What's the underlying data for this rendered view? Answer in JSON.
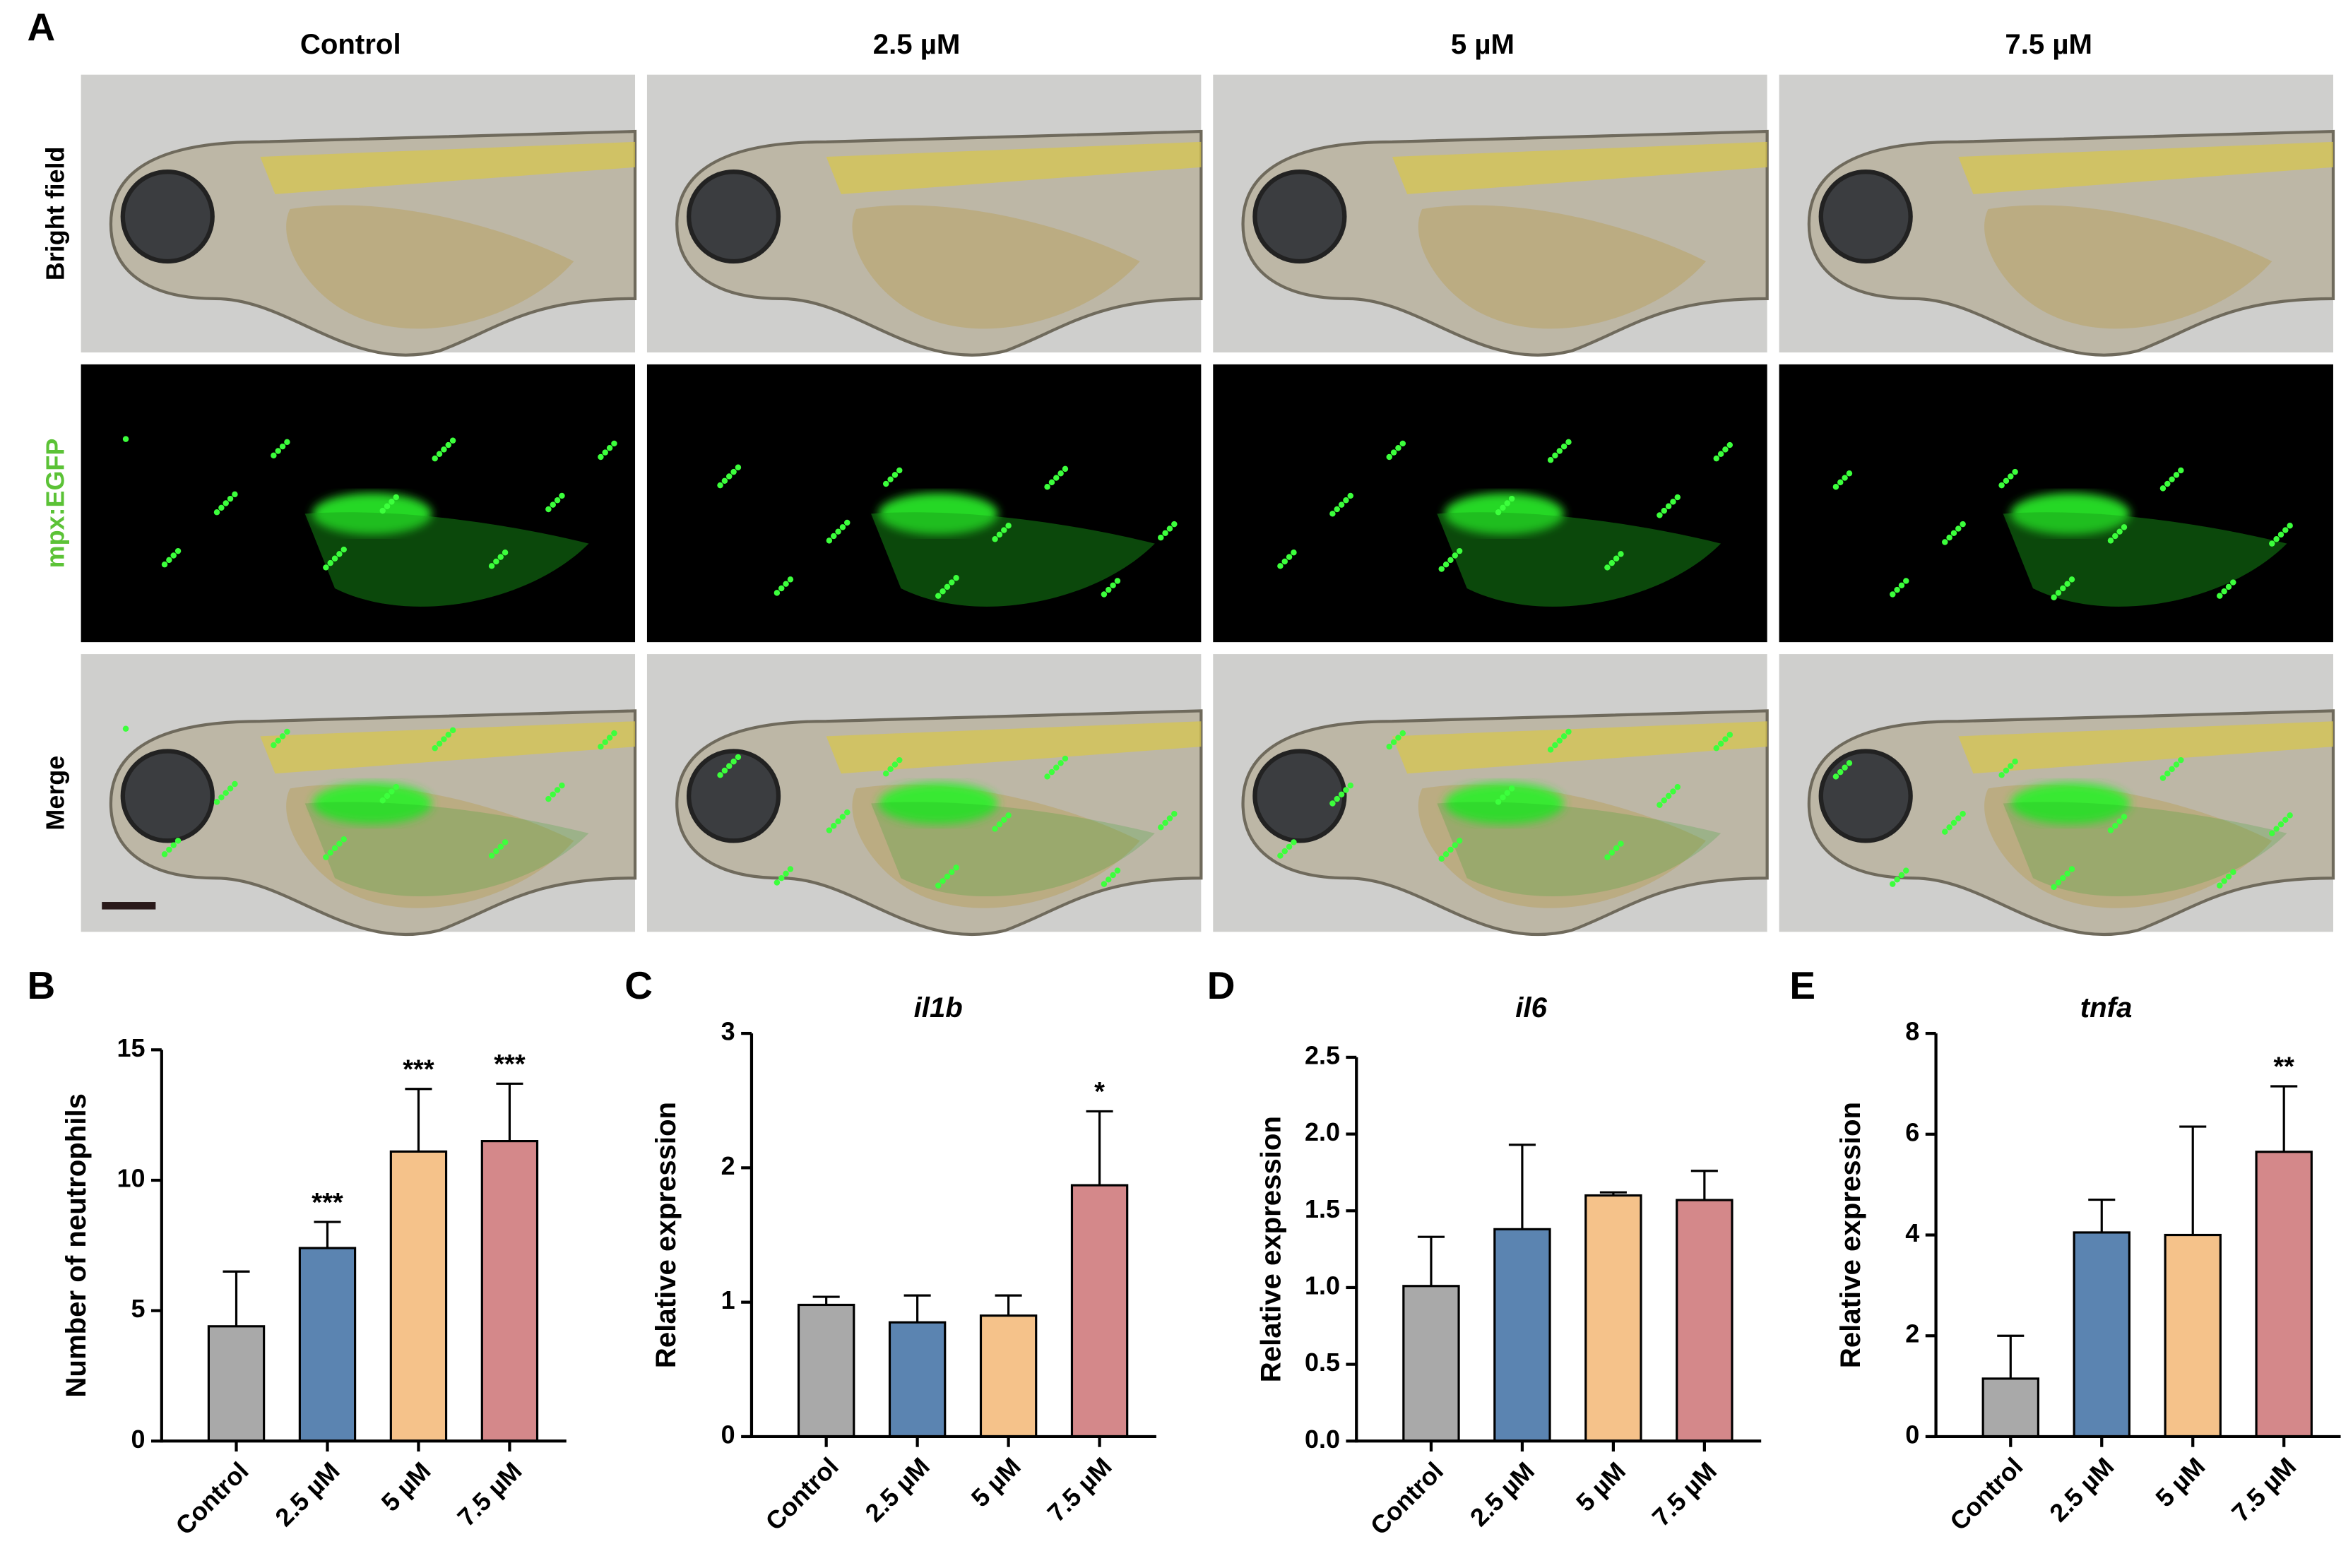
{
  "figure": {
    "panel_labels": [
      "A",
      "B",
      "C",
      "D",
      "E"
    ],
    "columns": [
      "Control",
      "2.5 µM",
      "5 µM",
      "7.5 µM"
    ],
    "rows": [
      "Bright field",
      "mpx:EGFP",
      "Merge"
    ]
  },
  "chart_data": [
    {
      "type": "bar",
      "y_label": "Number of neutrophils",
      "categories": [
        "Control",
        "2.5 µM",
        "5 µM",
        "7.5 µM"
      ],
      "values": [
        4.4,
        7.4,
        11.1,
        11.5
      ],
      "errors": [
        2.1,
        1.0,
        2.4,
        2.2
      ],
      "annotations": [
        null,
        "***",
        "***",
        "***"
      ],
      "colors": [
        "#a9a9a9",
        "#5b84b1",
        "#f5c28a",
        "#d4888a"
      ],
      "ylim": [
        0,
        15
      ],
      "yticks": [
        0,
        5,
        10,
        15
      ]
    },
    {
      "type": "bar",
      "title": "il1b",
      "y_label": "Relative expression",
      "categories": [
        "Control",
        "2.5 µM",
        "5 µM",
        "7.5 µM"
      ],
      "values": [
        0.98,
        0.85,
        0.9,
        1.87
      ],
      "errors": [
        0.06,
        0.2,
        0.15,
        0.55
      ],
      "annotations": [
        null,
        null,
        null,
        "*"
      ],
      "colors": [
        "#a9a9a9",
        "#5b84b1",
        "#f5c28a",
        "#d4888a"
      ],
      "ylim": [
        0,
        3
      ],
      "yticks": [
        0,
        1,
        2,
        3
      ]
    },
    {
      "type": "bar",
      "title": "il6",
      "y_label": "Relative expression",
      "categories": [
        "Control",
        "2.5 µM",
        "5 µM",
        "7.5 µM"
      ],
      "values": [
        1.01,
        1.38,
        1.6,
        1.57
      ],
      "errors": [
        0.32,
        0.55,
        0.02,
        0.19
      ],
      "colors": [
        "#a9a9a9",
        "#5b84b1",
        "#f5c28a",
        "#d4888a"
      ],
      "ylim": [
        0,
        2.5
      ],
      "yticks": [
        {
          "value": 0,
          "label": "0.0"
        },
        0.5,
        {
          "value": 1,
          "label": "1.0"
        },
        1.5,
        {
          "value": 2,
          "label": "2.0"
        },
        2.5
      ]
    },
    {
      "type": "bar",
      "title": "tnfa",
      "y_label": "Relative expression",
      "categories": [
        "Control",
        "2.5 µM",
        "5 µM",
        "7.5 µM"
      ],
      "values": [
        1.15,
        4.05,
        4.0,
        5.65
      ],
      "errors": [
        0.85,
        0.65,
        2.15,
        1.3
      ],
      "annotations": [
        null,
        null,
        null,
        "**"
      ],
      "colors": [
        "#a9a9a9",
        "#5b84b1",
        "#f5c28a",
        "#d4888a"
      ],
      "ylim": [
        0,
        8
      ],
      "yticks": [
        0,
        2,
        4,
        6,
        8
      ]
    }
  ]
}
